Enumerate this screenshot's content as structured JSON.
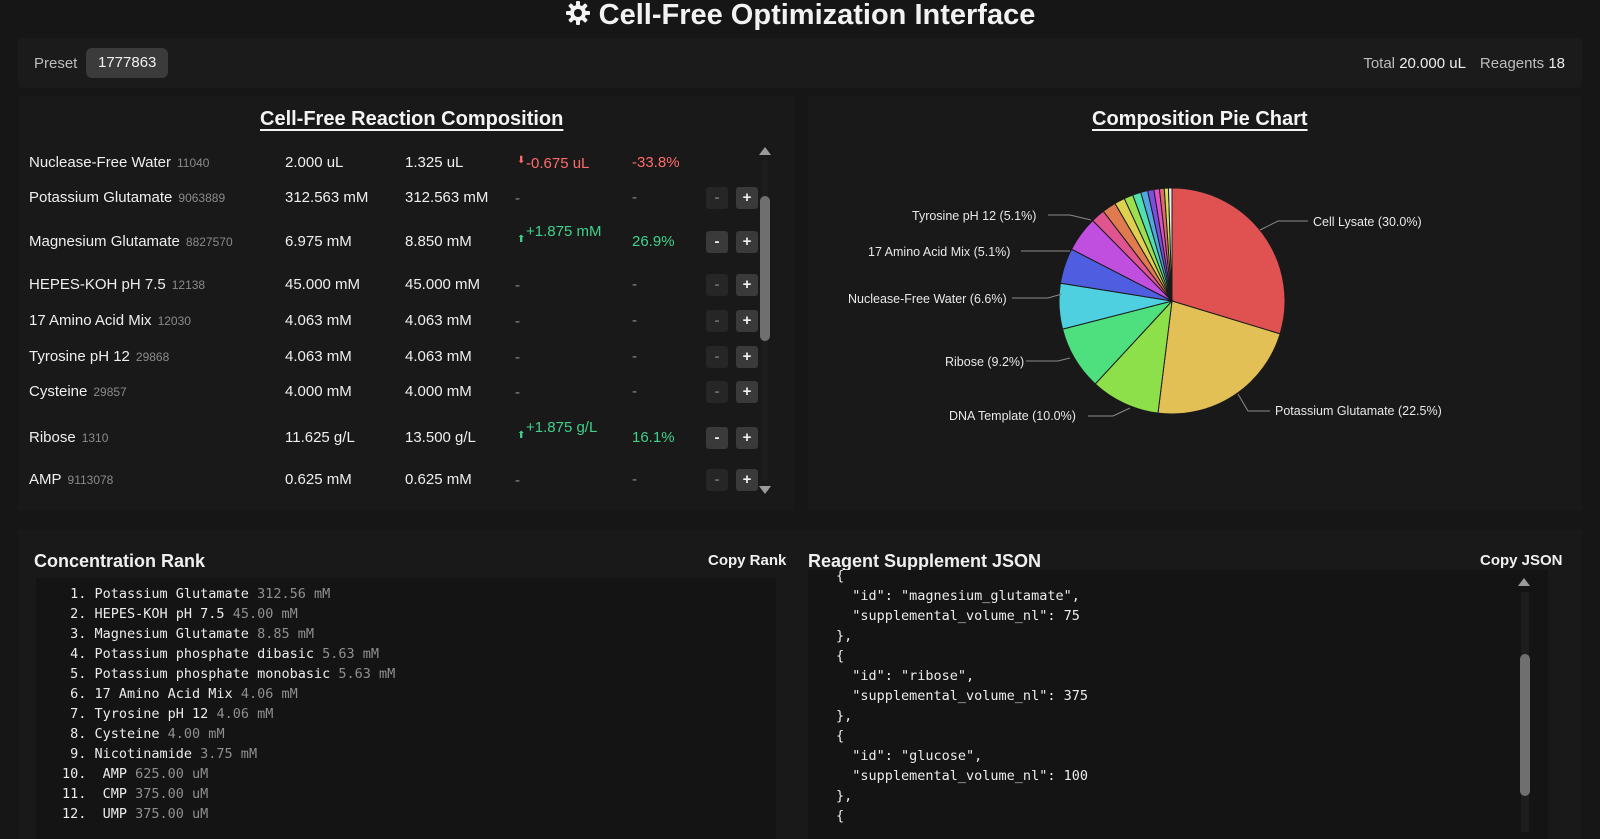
{
  "header": {
    "title": "Cell-Free Optimization Interface",
    "icon": "gear-icon"
  },
  "toolbar": {
    "preset_label": "Preset",
    "preset_value": "1777863",
    "total_label": "Total",
    "total_value": "20.000 uL",
    "reagents_label": "Reagents",
    "reagents_value": "18"
  },
  "composition": {
    "title": "Cell-Free Reaction Composition",
    "rows": [
      {
        "name": "Nuclease-Free Water",
        "id": "11040",
        "base": "2.000 uL",
        "current": "1.325 uL",
        "direction": "down",
        "delta": "-0.675 uL",
        "pct": "-33.8%",
        "minus_enabled": false,
        "plus_visible": false
      },
      {
        "name": "Potassium Glutamate",
        "id": "9063889",
        "base": "312.563 mM",
        "current": "312.563 mM",
        "direction": "none",
        "delta": "-",
        "pct": "-",
        "minus_enabled": false,
        "plus_visible": true
      },
      {
        "name": "Magnesium Glutamate",
        "id": "8827570",
        "base": "6.975 mM",
        "current": "8.850 mM",
        "direction": "up",
        "delta": "+1.875 mM",
        "pct": "26.9%",
        "minus_enabled": true,
        "plus_visible": true
      },
      {
        "name": "HEPES-KOH pH 7.5",
        "id": "12138",
        "base": "45.000 mM",
        "current": "45.000 mM",
        "direction": "none",
        "delta": "-",
        "pct": "-",
        "minus_enabled": false,
        "plus_visible": true
      },
      {
        "name": "17 Amino Acid Mix",
        "id": "12030",
        "base": "4.063 mM",
        "current": "4.063 mM",
        "direction": "none",
        "delta": "-",
        "pct": "-",
        "minus_enabled": false,
        "plus_visible": true
      },
      {
        "name": "Tyrosine pH 12",
        "id": "29868",
        "base": "4.063 mM",
        "current": "4.063 mM",
        "direction": "none",
        "delta": "-",
        "pct": "-",
        "minus_enabled": false,
        "plus_visible": true
      },
      {
        "name": "Cysteine",
        "id": "29857",
        "base": "4.000 mM",
        "current": "4.000 mM",
        "direction": "none",
        "delta": "-",
        "pct": "-",
        "minus_enabled": false,
        "plus_visible": true
      },
      {
        "name": "Ribose",
        "id": "1310",
        "base": "11.625 g/L",
        "current": "13.500 g/L",
        "direction": "up",
        "delta": "+1.875 g/L",
        "pct": "16.1%",
        "minus_enabled": true,
        "plus_visible": true
      },
      {
        "name": "AMP",
        "id": "9113078",
        "base": "0.625 mM",
        "current": "0.625 mM",
        "direction": "none",
        "delta": "-",
        "pct": "-",
        "minus_enabled": false,
        "plus_visible": true
      }
    ],
    "minus_label": "-",
    "plus_label": "+"
  },
  "pie": {
    "title": "Composition Pie Chart",
    "labels": [
      "Cell Lysate (30.0%)",
      "Potassium Glutamate (22.5%)",
      "DNA Template (10.0%)",
      "Ribose (9.2%)",
      "Nuclease-Free Water (6.6%)",
      "17 Amino Acid Mix (5.1%)",
      "Tyrosine pH 12 (5.1%)"
    ]
  },
  "chart_data": {
    "type": "pie",
    "title": "Composition Pie Chart",
    "slices": [
      {
        "label": "Cell Lysate",
        "value": 30.0,
        "color": "#e05252"
      },
      {
        "label": "Potassium Glutamate",
        "value": 22.5,
        "color": "#e2c055"
      },
      {
        "label": "DNA Template",
        "value": 10.0,
        "color": "#8ee04a"
      },
      {
        "label": "Ribose",
        "value": 9.2,
        "color": "#4ee07e"
      },
      {
        "label": "Nuclease-Free Water",
        "value": 6.6,
        "color": "#4fd0e0"
      },
      {
        "label": "17 Amino Acid Mix",
        "value": 5.1,
        "color": "#4f5ee0"
      },
      {
        "label": "Tyrosine pH 12",
        "value": 5.1,
        "color": "#c04fe0"
      },
      {
        "label": "",
        "value": 2.0,
        "color": "#e05590"
      },
      {
        "label": "",
        "value": 2.0,
        "color": "#e07a4f"
      },
      {
        "label": "",
        "value": 1.5,
        "color": "#e0d04f"
      },
      {
        "label": "",
        "value": 1.3,
        "color": "#9ce04f"
      },
      {
        "label": "",
        "value": 1.2,
        "color": "#4fe0b0"
      },
      {
        "label": "",
        "value": 1.0,
        "color": "#4fa8e0"
      },
      {
        "label": "",
        "value": 0.9,
        "color": "#7a4fe0"
      },
      {
        "label": "",
        "value": 0.8,
        "color": "#e04fc8"
      },
      {
        "label": "",
        "value": 0.7,
        "color": "#e06a6a"
      },
      {
        "label": "",
        "value": 0.6,
        "color": "#d9e04f"
      },
      {
        "label": "",
        "value": 0.5,
        "color": "#f0f0f0"
      }
    ]
  },
  "rank": {
    "title": "Concentration Rank",
    "copy_label": "Copy Rank",
    "items": [
      {
        "n": " 1.",
        "name": "Potassium Glutamate",
        "value": "312.56 mM"
      },
      {
        "n": " 2.",
        "name": "HEPES-KOH pH 7.5",
        "value": "45.00 mM"
      },
      {
        "n": " 3.",
        "name": "Magnesium Glutamate",
        "value": "8.85 mM"
      },
      {
        "n": " 4.",
        "name": "Potassium phosphate dibasic",
        "value": "5.63 mM"
      },
      {
        "n": " 5.",
        "name": "Potassium phosphate monobasic",
        "value": "5.63 mM"
      },
      {
        "n": " 6.",
        "name": "17 Amino Acid Mix",
        "value": "4.06 mM"
      },
      {
        "n": " 7.",
        "name": "Tyrosine pH 12",
        "value": "4.06 mM"
      },
      {
        "n": " 8.",
        "name": "Cysteine",
        "value": "4.00 mM"
      },
      {
        "n": " 9.",
        "name": "Nicotinamide",
        "value": "3.75 mM"
      },
      {
        "n": "10.",
        "name": " AMP",
        "value": "625.00 uM"
      },
      {
        "n": "11.",
        "name": " CMP",
        "value": "375.00 uM"
      },
      {
        "n": "12.",
        "name": " UMP",
        "value": "375.00 uM"
      }
    ]
  },
  "json_panel": {
    "title": "Reagent Supplement JSON",
    "copy_label": "Copy JSON",
    "lines": [
      "{",
      "  \"id\": \"magnesium_glutamate\",",
      "  \"supplemental_volume_nl\": 75",
      "},",
      "{",
      "  \"id\": \"ribose\",",
      "  \"supplemental_volume_nl\": 375",
      "},",
      "{",
      "  \"id\": \"glucose\",",
      "  \"supplemental_volume_nl\": 100",
      "},",
      "{"
    ]
  }
}
